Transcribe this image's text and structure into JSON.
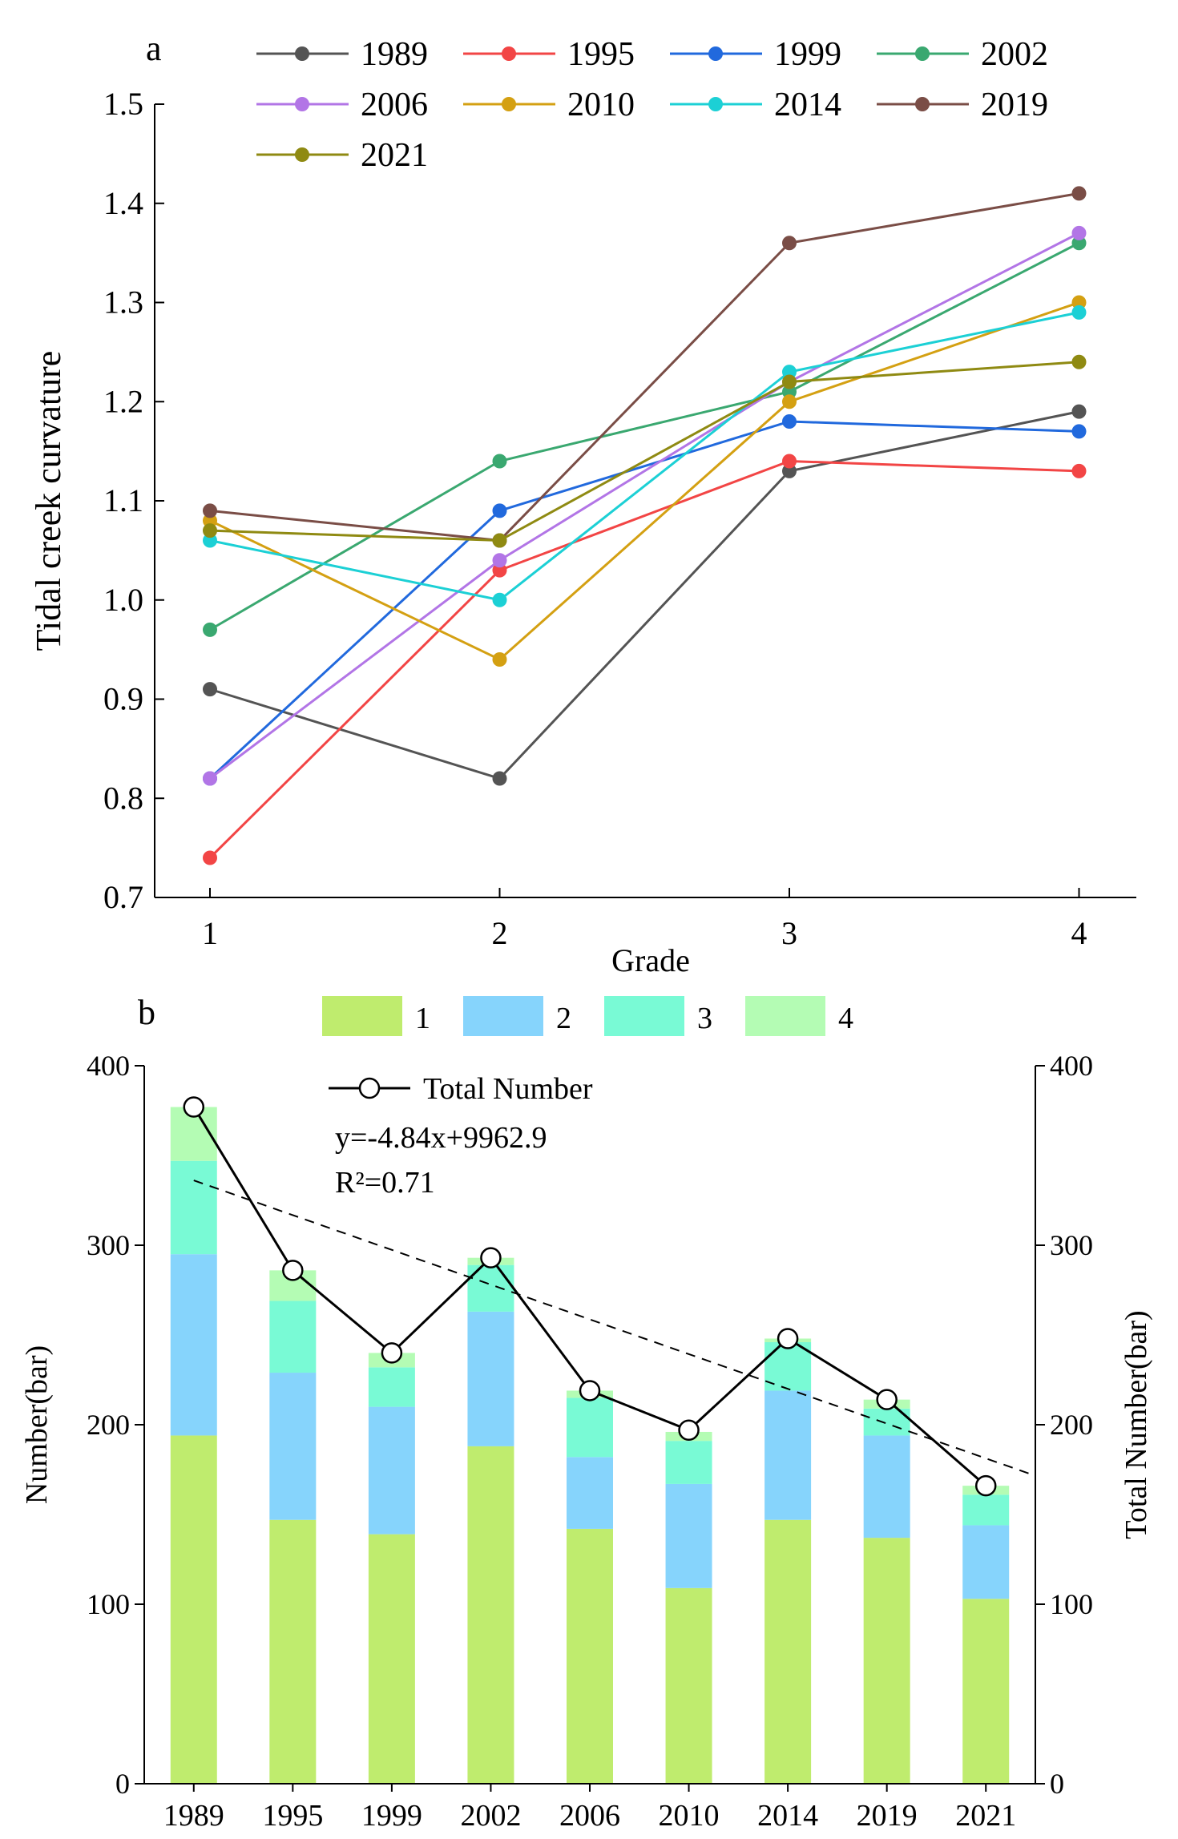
{
  "colors": {
    "1989": "#545454",
    "1995": "#f24545",
    "1999": "#2169dd",
    "2002": "#3aa870",
    "2006": "#b275e6",
    "2010": "#d4a012",
    "2014": "#1cd0d5",
    "2019": "#7a4d46",
    "2021": "#8f8a12",
    "grade1": "#bfec6e",
    "grade2": "#86d4fc",
    "grade3": "#79fad5",
    "grade4": "#b4fcb4",
    "total_line": "#000000"
  },
  "chart_data": [
    {
      "type": "line",
      "panel_label": "a",
      "title": "",
      "xlabel": "Grade",
      "ylabel": "Tidal creek curvature",
      "x": [
        1,
        2,
        3,
        4
      ],
      "x_ticks": [
        "1",
        "2",
        "3",
        "4"
      ],
      "ylim": [
        0.7,
        1.5
      ],
      "y_ticks": [
        "0.7",
        "0.8",
        "0.9",
        "1.0",
        "1.1",
        "1.2",
        "1.3",
        "1.4",
        "1.5"
      ],
      "grid": false,
      "legend_position": "top",
      "series": [
        {
          "name": "1989",
          "values": [
            0.91,
            0.82,
            1.13,
            1.19
          ]
        },
        {
          "name": "1995",
          "values": [
            0.74,
            1.03,
            1.14,
            1.13
          ]
        },
        {
          "name": "1999",
          "values": [
            0.82,
            1.09,
            1.18,
            1.17
          ]
        },
        {
          "name": "2002",
          "values": [
            0.97,
            1.14,
            1.21,
            1.36
          ]
        },
        {
          "name": "2006",
          "values": [
            0.82,
            1.04,
            1.22,
            1.37
          ]
        },
        {
          "name": "2010",
          "values": [
            1.08,
            0.94,
            1.2,
            1.3
          ]
        },
        {
          "name": "2014",
          "values": [
            1.06,
            1.0,
            1.23,
            1.29
          ]
        },
        {
          "name": "2019",
          "values": [
            1.09,
            1.06,
            1.36,
            1.41
          ]
        },
        {
          "name": "2021",
          "values": [
            1.07,
            1.06,
            1.22,
            1.24
          ]
        }
      ]
    },
    {
      "type": "bar",
      "stacked": true,
      "panel_label": "b",
      "title": "",
      "xlabel": "",
      "ylabel": "Number(bar)",
      "y2label": "Total Number(bar)",
      "categories": [
        "1989",
        "1995",
        "1999",
        "2002",
        "2006",
        "2010",
        "2014",
        "2019",
        "2021"
      ],
      "ylim": [
        0,
        400
      ],
      "y_ticks": [
        "0",
        "100",
        "200",
        "300",
        "400"
      ],
      "grid": false,
      "legend_position": "top",
      "series": [
        {
          "name": "1",
          "values": [
            194,
            147,
            139,
            188,
            142,
            109,
            147,
            137,
            103
          ]
        },
        {
          "name": "2",
          "values": [
            101,
            82,
            71,
            75,
            40,
            58,
            72,
            57,
            41
          ]
        },
        {
          "name": "3",
          "values": [
            52,
            40,
            22,
            26,
            33,
            24,
            27,
            15,
            17
          ]
        },
        {
          "name": "4",
          "values": [
            30,
            17,
            8,
            4,
            4,
            5,
            2,
            5,
            5
          ]
        }
      ],
      "line_series": {
        "name": "Total Number",
        "values": [
          377,
          286,
          240,
          293,
          219,
          197,
          248,
          214,
          166
        ]
      },
      "trendline": {
        "equation": "y=-4.84x+9962.9",
        "r2": "R²=0.71",
        "slope": -4.84,
        "intercept": 9962.9
      }
    }
  ]
}
